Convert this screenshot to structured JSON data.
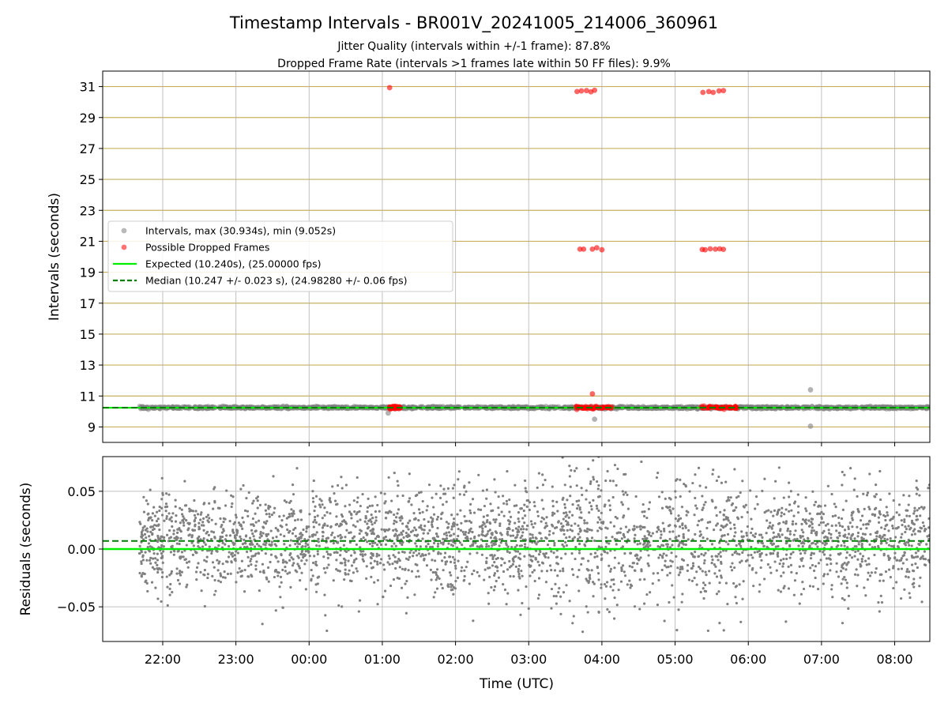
{
  "figure": {
    "title": "Timestamp Intervals - BR001V_20241005_214006_360961",
    "subtitle_1": "Jitter Quality (intervals within +/-1 frame): 87.8%",
    "subtitle_2": "Dropped Frame Rate (intervals >1 frames late within 50 FF files): 9.9%"
  },
  "colors": {
    "intervals": "#808080",
    "dropped": "#ff0000",
    "expected": "#00ee00",
    "median": "#007f00",
    "hgrid_top": "#c8b060",
    "grid": "#b0b0b0"
  },
  "chart_data": [
    {
      "type": "scatter",
      "panel": "intervals",
      "ylabel": "Intervals (seconds)",
      "xlabel": "",
      "x_unit": "hours since 00:00 UTC (2024-10-05/06)",
      "xlim": [
        -2.82,
        8.48
      ],
      "ylim": [
        8.0,
        32.0
      ],
      "yticks": [
        9,
        11,
        13,
        15,
        17,
        19,
        21,
        23,
        25,
        27,
        29,
        31
      ],
      "xticks": [
        "22:00",
        "23:00",
        "00:00",
        "01:00",
        "02:00",
        "03:00",
        "04:00",
        "05:00",
        "06:00",
        "07:00",
        "08:00"
      ],
      "legend_position": "center-left",
      "series": [
        {
          "name": "Intervals, max (30.934s), min (9.052s)",
          "kind": "scatter",
          "baseline": 10.247,
          "x_range": [
            -2.32,
            8.48
          ],
          "outliers": [
            {
              "x": 1.08,
              "y": 9.9
            },
            {
              "x": 3.9,
              "y": 9.5
            },
            {
              "x": 6.85,
              "y": 9.05
            },
            {
              "x": 6.85,
              "y": 11.4
            }
          ]
        },
        {
          "name": "Possible Dropped Frames",
          "kind": "scatter",
          "points": [
            {
              "x": 1.1,
              "y": 30.93
            },
            {
              "x": 3.66,
              "y": 30.68
            },
            {
              "x": 3.72,
              "y": 30.72
            },
            {
              "x": 3.79,
              "y": 30.74
            },
            {
              "x": 3.85,
              "y": 30.66
            },
            {
              "x": 3.9,
              "y": 30.76
            },
            {
              "x": 5.38,
              "y": 30.62
            },
            {
              "x": 5.46,
              "y": 30.68
            },
            {
              "x": 5.52,
              "y": 30.62
            },
            {
              "x": 5.6,
              "y": 30.72
            },
            {
              "x": 5.66,
              "y": 30.74
            },
            {
              "x": 3.7,
              "y": 20.49
            },
            {
              "x": 3.75,
              "y": 20.49
            },
            {
              "x": 3.87,
              "y": 20.49
            },
            {
              "x": 3.93,
              "y": 20.58
            },
            {
              "x": 4.0,
              "y": 20.45
            },
            {
              "x": 5.37,
              "y": 20.47
            },
            {
              "x": 5.41,
              "y": 20.45
            },
            {
              "x": 5.48,
              "y": 20.51
            },
            {
              "x": 5.55,
              "y": 20.49
            },
            {
              "x": 5.61,
              "y": 20.51
            },
            {
              "x": 5.66,
              "y": 20.48
            },
            {
              "x": 3.87,
              "y": 11.14
            }
          ],
          "clusters": [
            {
              "x_range": [
                1.1,
                1.25
              ],
              "y": 10.26
            },
            {
              "x_range": [
                3.64,
                4.15
              ],
              "y": 10.26
            },
            {
              "x_range": [
                5.35,
                5.85
              ],
              "y": 10.26
            }
          ]
        },
        {
          "name": "Expected (10.240s), (25.00000 fps)",
          "kind": "hline",
          "y": 10.24
        },
        {
          "name": "Median (10.247 +/- 0.023 s), (24.98280 +/- 0.06 fps)",
          "kind": "hline-dashed",
          "y": 10.247
        }
      ]
    },
    {
      "type": "scatter",
      "panel": "residuals",
      "xlabel": "Time (UTC)",
      "ylabel": "Residuals (seconds)",
      "xlim": [
        -2.82,
        8.48
      ],
      "ylim": [
        -0.08,
        0.08
      ],
      "yticks": [
        -0.05,
        0.0,
        0.05
      ],
      "ytick_labels": [
        "−0.05",
        "0.00",
        "0.05"
      ],
      "xticks": [
        "22:00",
        "23:00",
        "00:00",
        "01:00",
        "02:00",
        "03:00",
        "04:00",
        "05:00",
        "06:00",
        "07:00",
        "08:00"
      ],
      "series": [
        {
          "name": "residuals",
          "kind": "scatter",
          "x_range": [
            -2.32,
            8.48
          ],
          "mean": 0.007,
          "std": 0.023
        },
        {
          "name": "expected",
          "kind": "hline",
          "y": 0.0
        },
        {
          "name": "median",
          "kind": "hline-dashed",
          "y": 0.007
        }
      ]
    }
  ]
}
